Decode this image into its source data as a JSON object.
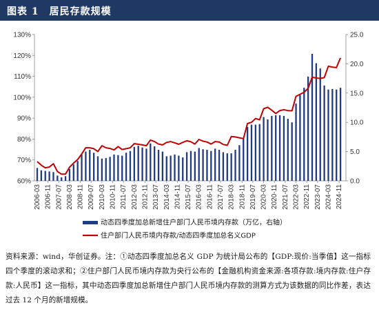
{
  "header": {
    "title": "图表 1　居民存款规模"
  },
  "footer": {
    "source_note": "资料来源：wind，华创证券。注：①动态四季度加总名义 GDP 为统计局公布的【GDP:现价:当季值】这一指标四个季度的滚动求和；②住户部门人民币境内存款为央行公布的【金融机构资金来源:各项存款:境内存款:住户存款:人民币】这一指标，其中动态四季度加总新增住户部门人民币境内存款的测算方式为该数据的同比作差，表达过去 12 个月的新增规模。"
  },
  "colors": {
    "bars": "#1f3b82",
    "line": "#c00000",
    "header_bg": "#1f3864"
  },
  "chart_data": {
    "type": "bar+line",
    "x_tick_labels": [
      "2006-03",
      "2006-11",
      "2007-07",
      "2008-03",
      "2008-11",
      "2009-07",
      "2010-03",
      "2010-11",
      "2011-07",
      "2012-03",
      "2012-11",
      "2013-07",
      "2014-03",
      "2014-11",
      "2015-07",
      "2016-03",
      "2016-11",
      "2017-07",
      "2018-03",
      "2018-11",
      "2019-07",
      "2020-03",
      "2020-11",
      "2021-07",
      "2022-03",
      "2022-11",
      "2023-07",
      "2024-03",
      "2024-11"
    ],
    "left_axis": {
      "min": 60,
      "max": 130,
      "step": 10,
      "tick_labels": [
        "60%",
        "70%",
        "80%",
        "90%",
        "100%",
        "110%",
        "120%",
        "130%"
      ]
    },
    "right_axis": {
      "min": 0,
      "max": 25,
      "step": 5,
      "tick_labels": [
        "0.0",
        "5.0",
        "10.0",
        "15.0",
        "20.0",
        "25.0"
      ]
    },
    "series": [
      {
        "name": "动态四季度加总新增住户部门人民币境内存款（万亿，右轴）",
        "type": "bar",
        "axis": "right",
        "color": "#1f3b82",
        "x": [
          "2006-03",
          "2006-06",
          "2006-09",
          "2006-12",
          "2007-03",
          "2007-06",
          "2007-09",
          "2007-12",
          "2008-03",
          "2008-06",
          "2008-09",
          "2008-12",
          "2009-03",
          "2009-06",
          "2009-09",
          "2009-12",
          "2010-03",
          "2010-06",
          "2010-09",
          "2010-12",
          "2011-03",
          "2011-06",
          "2011-09",
          "2011-12",
          "2012-03",
          "2012-06",
          "2012-09",
          "2012-12",
          "2013-03",
          "2013-06",
          "2013-09",
          "2013-12",
          "2014-03",
          "2014-06",
          "2014-09",
          "2014-12",
          "2015-03",
          "2015-06",
          "2015-09",
          "2015-12",
          "2016-03",
          "2016-06",
          "2016-09",
          "2016-12",
          "2017-03",
          "2017-06",
          "2017-09",
          "2017-12",
          "2018-03",
          "2018-06",
          "2018-09",
          "2018-12",
          "2019-03",
          "2019-06",
          "2019-09",
          "2019-12",
          "2020-03",
          "2020-06",
          "2020-09",
          "2020-12",
          "2021-03",
          "2021-06",
          "2021-09",
          "2021-12",
          "2022-03",
          "2022-06",
          "2022-09",
          "2022-12",
          "2023-03",
          "2023-06",
          "2023-09",
          "2023-12",
          "2024-03",
          "2024-06",
          "2024-09",
          "2024-12"
        ],
        "values": [
          2.2,
          1.8,
          1.7,
          1.6,
          1.5,
          0.9,
          0.6,
          0.8,
          2.0,
          2.8,
          3.4,
          4.5,
          5.0,
          5.3,
          4.8,
          4.2,
          3.8,
          3.9,
          4.1,
          4.5,
          4.4,
          4.3,
          4.8,
          5.1,
          5.8,
          6.0,
          5.7,
          5.5,
          6.4,
          5.9,
          5.3,
          5.0,
          4.2,
          4.3,
          4.5,
          4.3,
          4.0,
          4.9,
          5.1,
          5.0,
          5.6,
          5.4,
          5.3,
          5.1,
          5.5,
          5.3,
          4.9,
          4.7,
          4.7,
          5.3,
          6.1,
          7.3,
          9.2,
          9.6,
          9.6,
          9.7,
          10.9,
          10.5,
          11.1,
          11.2,
          11.2,
          11.1,
          10.6,
          10.0,
          13.2,
          14.7,
          15.9,
          17.8,
          21.7,
          20.1,
          19.2,
          16.3,
          15.6,
          15.7,
          15.6,
          15.9
        ]
      },
      {
        "name": "住户部门人民币境内存款/动态四季度加总名义GDP",
        "type": "line",
        "axis": "left",
        "color": "#c00000",
        "x": [
          "2006-03",
          "2006-06",
          "2006-09",
          "2006-12",
          "2007-03",
          "2007-06",
          "2007-09",
          "2007-12",
          "2008-03",
          "2008-06",
          "2008-09",
          "2008-12",
          "2009-03",
          "2009-06",
          "2009-09",
          "2009-12",
          "2010-03",
          "2010-06",
          "2010-09",
          "2010-12",
          "2011-03",
          "2011-06",
          "2011-09",
          "2011-12",
          "2012-03",
          "2012-06",
          "2012-09",
          "2012-12",
          "2013-03",
          "2013-06",
          "2013-09",
          "2013-12",
          "2014-03",
          "2014-06",
          "2014-09",
          "2014-12",
          "2015-03",
          "2015-06",
          "2015-09",
          "2015-12",
          "2016-03",
          "2016-06",
          "2016-09",
          "2016-12",
          "2017-03",
          "2017-06",
          "2017-09",
          "2017-12",
          "2018-03",
          "2018-06",
          "2018-09",
          "2018-12",
          "2019-03",
          "2019-06",
          "2019-09",
          "2019-12",
          "2020-03",
          "2020-06",
          "2020-09",
          "2020-12",
          "2021-03",
          "2021-06",
          "2021-09",
          "2021-12",
          "2022-03",
          "2022-06",
          "2022-09",
          "2022-12",
          "2023-03",
          "2023-06",
          "2023-09",
          "2023-12",
          "2024-03",
          "2024-06",
          "2024-09",
          "2024-12"
        ],
        "values": [
          69.2,
          67.5,
          66.2,
          66.6,
          68.2,
          64.5,
          63.2,
          63.2,
          66.5,
          68.5,
          70.2,
          72.8,
          75.8,
          75.8,
          75.4,
          74.0,
          76.8,
          75.8,
          75.5,
          74.8,
          76.4,
          75.0,
          75.4,
          75.8,
          77.8,
          77.5,
          77.2,
          76.8,
          79.5,
          78.8,
          77.6,
          77.2,
          78.4,
          78.8,
          78.2,
          77.5,
          78.4,
          79.2,
          78.7,
          77.6,
          79.8,
          79.0,
          78.6,
          77.6,
          78.8,
          78.6,
          77.4,
          77.0,
          81.2,
          81.0,
          80.6,
          80.2,
          87.4,
          88.0,
          89.8,
          89.2,
          94.5,
          95.2,
          93.8,
          92.2,
          93.6,
          94.0,
          93.6,
          93.5,
          100.4,
          101.4,
          102.4,
          104.2,
          109.6,
          109.2,
          109.0,
          109.4,
          114.8,
          114.4,
          114.2,
          118.8
        ]
      }
    ]
  }
}
